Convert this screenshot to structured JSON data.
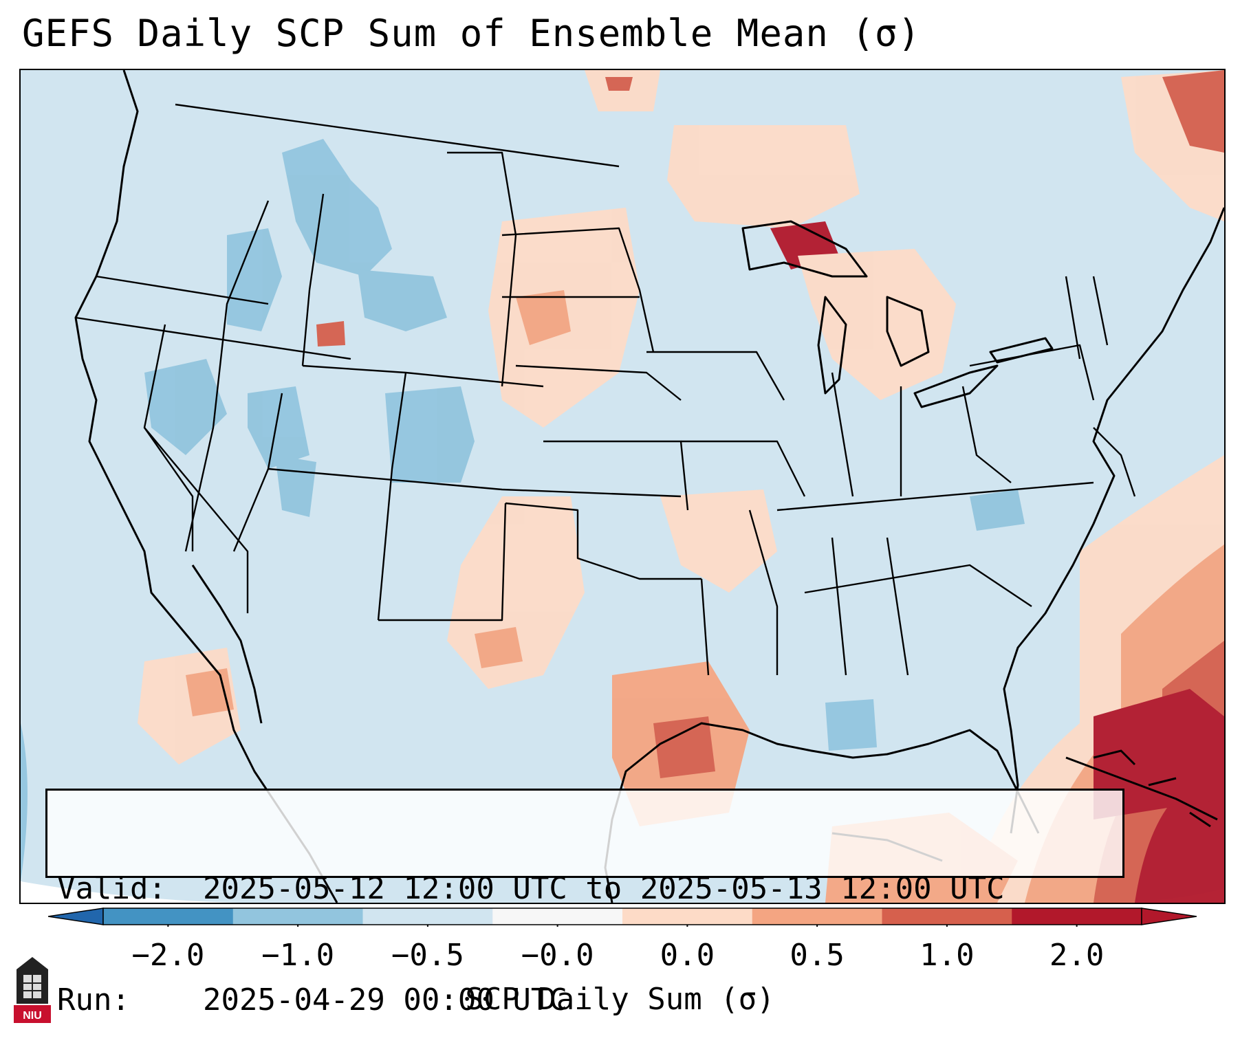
{
  "title": "GEFS Daily SCP Sum of Ensemble Mean (σ)",
  "info": {
    "valid_label": "Valid:",
    "valid_value": "2025-05-12 12:00 UTC to 2025-05-13 12:00 UTC",
    "run_label": "Run:",
    "run_value": "2025-04-29 00:00 UTC"
  },
  "colorbar": {
    "label": "SCP Daily Sum (σ)",
    "ticks": [
      "−2.0",
      "−1.0",
      "−0.5",
      "−0.0",
      "0.0",
      "0.5",
      "1.0",
      "2.0"
    ],
    "colors": [
      "#4393c3",
      "#92c5de",
      "#d1e5f0",
      "#f7f7f7",
      "#fddbc7",
      "#f4a582",
      "#d6604d",
      "#b2182b"
    ],
    "extend": "both"
  },
  "map": {
    "region": "Contiguous United States",
    "background_color": "#d1e5f0",
    "max_color": "#b2182b"
  },
  "logo": {
    "text": "NIU",
    "color": "#c8102e"
  }
}
